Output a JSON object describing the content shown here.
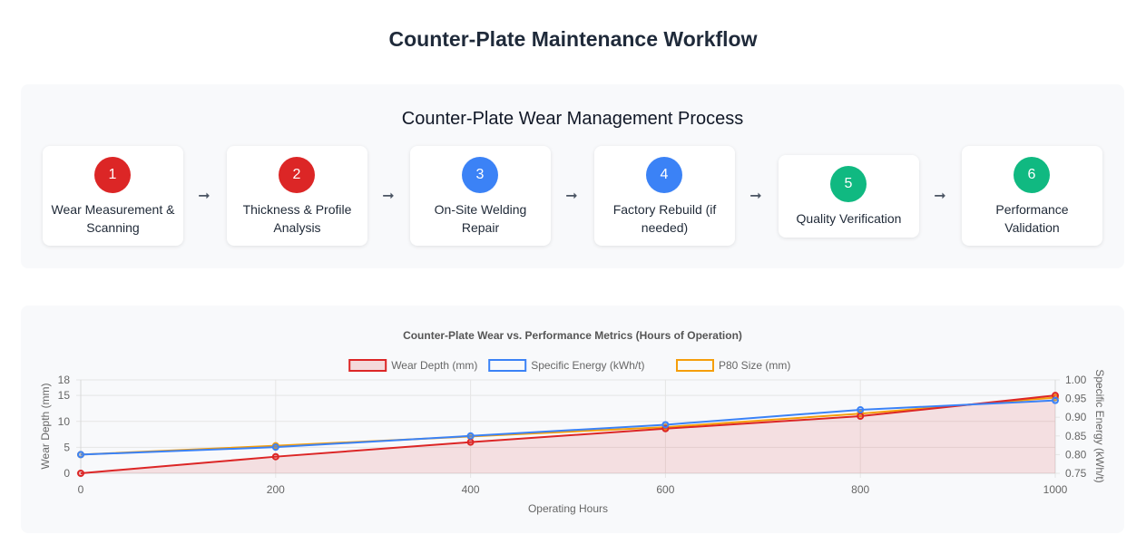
{
  "page": {
    "title": "Counter-Plate Maintenance Workflow"
  },
  "process": {
    "title": "Counter-Plate Wear Management Process",
    "arrow": "➞",
    "steps": [
      {
        "number": "1",
        "label": "Wear Measurement & Scanning",
        "color": "#dc2626"
      },
      {
        "number": "2",
        "label": "Thickness & Profile Analysis",
        "color": "#dc2626"
      },
      {
        "number": "3",
        "label": "On-Site Welding Repair",
        "color": "#3b82f6"
      },
      {
        "number": "4",
        "label": "Factory Rebuild (if needed)",
        "color": "#3b82f6"
      },
      {
        "number": "5",
        "label": "Quality Verification",
        "color": "#10b981"
      },
      {
        "number": "6",
        "label": "Performance Validation",
        "color": "#10b981"
      }
    ]
  },
  "chart_data": {
    "type": "line",
    "title": "Counter-Plate Wear vs. Performance Metrics (Hours of Operation)",
    "xlabel": "Operating Hours",
    "ylabel": "Wear Depth (mm)",
    "y2label": "Specific Energy (kWh/t)",
    "x": [
      0,
      200,
      400,
      600,
      800,
      1000
    ],
    "xlim": [
      0,
      1000
    ],
    "xticks": [
      "0",
      "200",
      "400",
      "600",
      "800",
      "1000"
    ],
    "ylim": [
      0,
      18
    ],
    "yticks": [
      "0",
      "5",
      "10",
      "15",
      "18"
    ],
    "y2lim": [
      0.75,
      1.0
    ],
    "y2ticks": [
      "0.75",
      "0.80",
      "0.85",
      "0.90",
      "0.95",
      "1.00"
    ],
    "grid": true,
    "legend_position": "top",
    "series": [
      {
        "name": "Wear Depth (mm)",
        "axis": "left",
        "color": "#dc2626",
        "fill": true,
        "values": [
          0,
          3.2,
          6.0,
          8.6,
          11.0,
          15.0
        ]
      },
      {
        "name": "Specific Energy (kWh/t)",
        "axis": "right",
        "color": "#3b82f6",
        "fill": false,
        "values": [
          0.8,
          0.82,
          0.85,
          0.88,
          0.92,
          0.945
        ]
      },
      {
        "name": "P80 Size (mm)",
        "axis": "left",
        "color": "#f59e0b",
        "fill": false,
        "values": [
          3.6,
          5.3,
          7.1,
          8.9,
          11.5,
          14.6
        ]
      }
    ]
  }
}
